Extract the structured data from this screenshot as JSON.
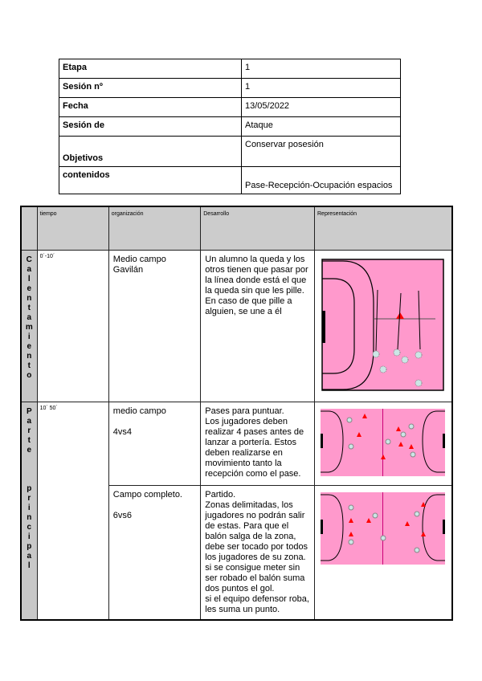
{
  "info": [
    {
      "label": "Etapa",
      "value": "1"
    },
    {
      "label": "Sesión nº",
      "value": "1"
    },
    {
      "label": "Fecha",
      "value": "13/05/2022"
    },
    {
      "label": "Sesión de",
      "value": "Ataque"
    },
    {
      "label": "Objetivos",
      "value": "Conservar posesión"
    },
    {
      "label": "contenidos",
      "value": "Pase-Recepción-Ocupación espacios"
    }
  ],
  "headers": {
    "tiempo": "tiempo",
    "organizacion": "organización",
    "desarrollo": "Desarrollo",
    "representacion": "Representación"
  },
  "phases": [
    {
      "name": "Calentamiento",
      "tiempo": "0´-10´"
    },
    {
      "name": "Parte principal",
      "tiempo": "10´ 50´"
    }
  ],
  "activities": [
    {
      "organizacion": "Medio campo Gavilán",
      "desarrollo": "Un alumno la queda y los otros tienen que pasar por la línea donde está el que la queda sin que les pille. En caso de que pille a alguien, se une a él"
    },
    {
      "organizacion": "medio campo\n\n4vs4",
      "desarrollo": "Pases para puntuar.\nLos jugadores deben realizar 4 pases antes de lanzar a portería. Estos deben realizarse en movimiento tanto la recepción como el pase."
    },
    {
      "organizacion": "Campo completo.\n\n6vs6",
      "desarrollo": "Partido.\nZonas delimitadas, los jugadores no podrán salir de estas. Para que el balón salga de la zona, debe ser tocado por todos los jugadores de su zona.\nsi se consigue meter sin ser robado el balón suma dos puntos el gol.\nsi el equipo defensor roba, les suma un punto."
    }
  ],
  "colors": {
    "court": "#ff99cc",
    "header": "#cccccc",
    "cone": "#ff0000",
    "player": "#cce6e6"
  }
}
